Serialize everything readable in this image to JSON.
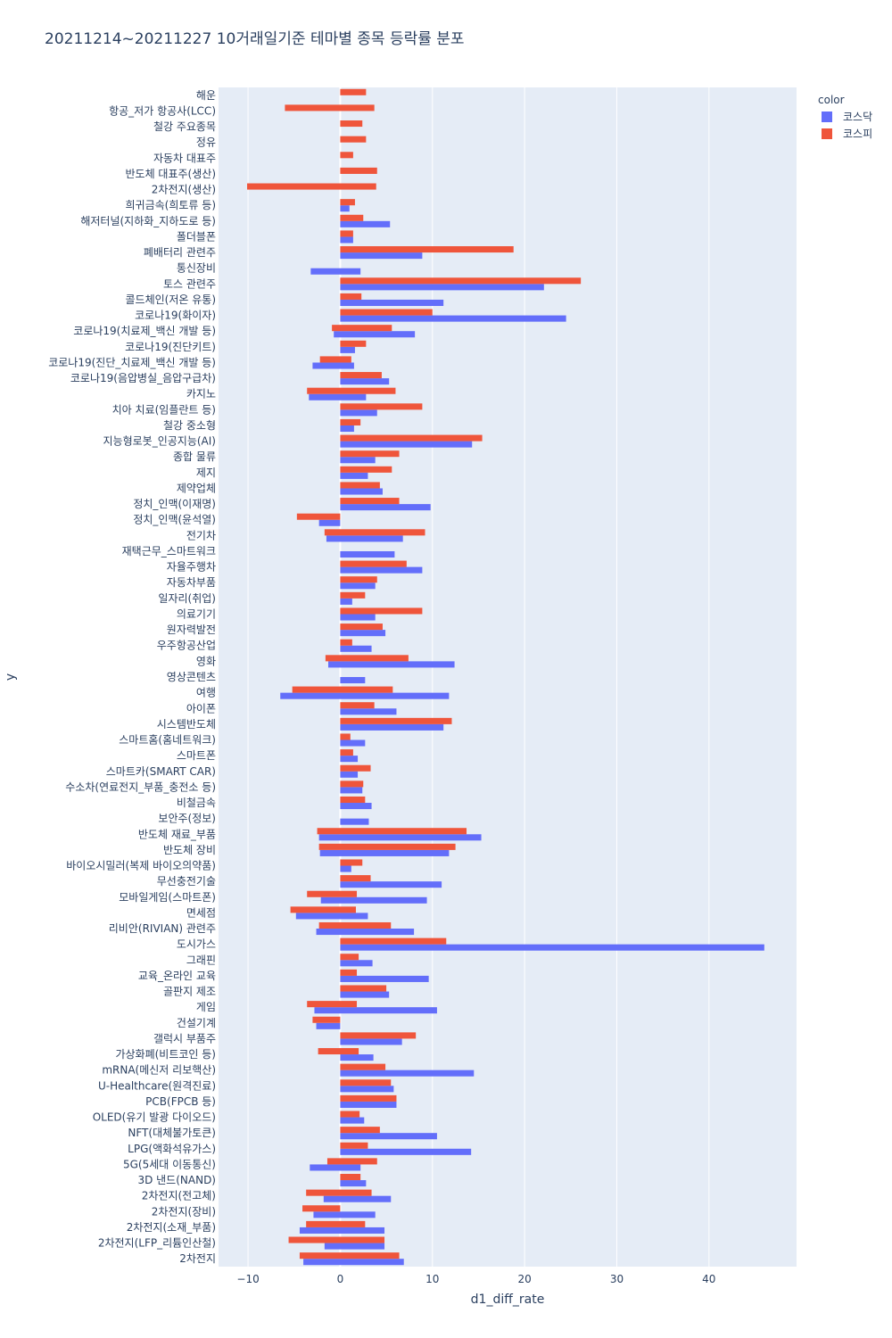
{
  "chart_data": {
    "type": "bar",
    "orientation": "horizontal",
    "barmode": "overlay-stacked-segments",
    "title": "20211214~20211227 10거래일기준 테마별 종목 등락률 분포",
    "xlabel": "d1_diff_rate",
    "ylabel": "y",
    "xlim": [
      -13.2,
      49.5
    ],
    "xticks": [
      -10,
      0,
      10,
      20,
      30,
      40
    ],
    "grid": true,
    "legend": {
      "title": "color",
      "position": "top-right"
    },
    "colors": {
      "코스닥": "#636efa",
      "코스피": "#ef553b"
    },
    "categories": [
      "해운",
      "항공_저가 항공사(LCC)",
      "철강 주요종목",
      "정유",
      "자동차 대표주",
      "반도체 대표주(생산)",
      "2차전지(생산)",
      "희귀금속(희토류 등)",
      "해저터널(지하화_지하도로 등)",
      "폴더블폰",
      "폐배터리 관련주",
      "통신장비",
      "토스 관련주",
      "콜드체인(저온 유통)",
      "코로나19(화이자)",
      "코로나19(치료제_백신 개발 등)",
      "코로나19(진단키트)",
      "코로나19(진단_치료제_백신 개발 등)",
      "코로나19(음압병실_음압구급차)",
      "카지노",
      "치아 치료(임플란트 등)",
      "철강 중소형",
      "지능형로봇_인공지능(AI)",
      "종합 물류",
      "제지",
      "제약업체",
      "정치_인맥(이재명)",
      "정치_인맥(윤석열)",
      "전기차",
      "재택근무_스마트워크",
      "자율주행차",
      "자동차부품",
      "일자리(취업)",
      "의료기기",
      "원자력발전",
      "우주항공산업",
      "영화",
      "영상콘텐츠",
      "여행",
      "아이폰",
      "시스템반도체",
      "스마트홈(홈네트워크)",
      "스마트폰",
      "스마트카(SMART CAR)",
      "수소차(연료전지_부품_충전소 등)",
      "비철금속",
      "보안주(정보)",
      "반도체 재료_부품",
      "반도체 장비",
      "바이오시밀러(복제 바이오의약품)",
      "무선충전기술",
      "모바일게임(스마트폰)",
      "면세점",
      "리비안(RIVIAN) 관련주",
      "도시가스",
      "그래핀",
      "교육_온라인 교육",
      "골판지 제조",
      "게임",
      "건설기계",
      "갤럭시 부품주",
      "가상화폐(비트코인 등)",
      "mRNA(메신저 리보핵산)",
      "U-Healthcare(원격진료)",
      "PCB(FPCB 등)",
      "OLED(유기 발광 다이오드)",
      "NFT(대체불가토큰)",
      "LPG(액화석유가스)",
      "5G(5세대 이동통신)",
      "3D 낸드(NAND)",
      "2차전지(전고체)",
      "2차전지(장비)",
      "2차전지(소재_부품)",
      "2차전지(LFP_리튬인산철)",
      "2차전지"
    ],
    "series": [
      {
        "name": "코스닥",
        "ranges": [
          null,
          null,
          null,
          null,
          null,
          null,
          null,
          [
            0,
            1.0
          ],
          [
            0,
            5.4
          ],
          [
            0,
            1.4
          ],
          [
            0,
            8.9
          ],
          [
            -3.2,
            2.2
          ],
          [
            0,
            22.1
          ],
          [
            0,
            11.2
          ],
          [
            0,
            24.5
          ],
          [
            -0.7,
            8.1
          ],
          [
            0,
            1.6
          ],
          [
            -3.0,
            1.5
          ],
          [
            0,
            5.3
          ],
          [
            -3.4,
            2.8
          ],
          [
            0,
            4.0
          ],
          [
            0,
            1.5
          ],
          [
            0,
            14.3
          ],
          [
            0,
            3.8
          ],
          [
            0,
            3.0
          ],
          [
            0,
            4.6
          ],
          [
            0,
            9.8
          ],
          [
            -2.3,
            0
          ],
          [
            -1.5,
            6.8
          ],
          [
            0,
            5.9
          ],
          [
            0,
            8.9
          ],
          [
            0,
            3.8
          ],
          [
            0,
            1.3
          ],
          [
            0,
            3.8
          ],
          [
            0,
            4.9
          ],
          [
            0,
            3.4
          ],
          [
            -1.3,
            12.4
          ],
          [
            0,
            2.7
          ],
          [
            -6.5,
            11.8
          ],
          [
            0,
            6.1
          ],
          [
            0,
            11.2
          ],
          [
            0,
            2.7
          ],
          [
            0,
            1.9
          ],
          [
            0,
            1.9
          ],
          [
            0,
            2.4
          ],
          [
            0,
            3.4
          ],
          [
            0,
            3.1
          ],
          [
            -2.3,
            15.3
          ],
          [
            -2.2,
            11.8
          ],
          [
            0,
            1.2
          ],
          [
            0,
            11.0
          ],
          [
            -2.1,
            9.4
          ],
          [
            -4.8,
            3.0
          ],
          [
            -2.6,
            8.0
          ],
          [
            0,
            46.0
          ],
          [
            0,
            3.5
          ],
          [
            0,
            9.6
          ],
          [
            0,
            5.3
          ],
          [
            -2.8,
            10.5
          ],
          [
            -2.6,
            0
          ],
          [
            0,
            6.7
          ],
          [
            0,
            3.6
          ],
          [
            0,
            14.5
          ],
          [
            0,
            5.8
          ],
          [
            0,
            6.1
          ],
          [
            0,
            2.6
          ],
          [
            0,
            10.5
          ],
          [
            0,
            14.2
          ],
          [
            -3.3,
            2.2
          ],
          [
            0,
            2.8
          ],
          [
            -1.8,
            5.5
          ],
          [
            -2.9,
            3.8
          ],
          [
            -4.4,
            4.8
          ],
          [
            -1.7,
            4.8
          ],
          [
            -4.0,
            6.9
          ]
        ]
      },
      {
        "name": "코스피",
        "ranges": [
          [
            0,
            2.8
          ],
          [
            -6.0,
            3.7
          ],
          [
            0,
            2.4
          ],
          [
            0,
            2.8
          ],
          [
            0,
            1.4
          ],
          [
            0,
            4.0
          ],
          [
            -10.1,
            3.9
          ],
          [
            0,
            1.6
          ],
          [
            0,
            2.5
          ],
          [
            0,
            1.4
          ],
          [
            0,
            18.8
          ],
          null,
          [
            0,
            26.1
          ],
          [
            0,
            2.3
          ],
          [
            0,
            10.0
          ],
          [
            -0.9,
            5.6
          ],
          [
            0,
            2.8
          ],
          [
            -2.2,
            1.2
          ],
          [
            0,
            4.5
          ],
          [
            -3.6,
            6.0
          ],
          [
            0,
            8.9
          ],
          [
            0,
            2.2
          ],
          [
            0,
            15.4
          ],
          [
            0,
            6.4
          ],
          [
            0,
            5.6
          ],
          [
            0,
            4.3
          ],
          [
            0,
            6.4
          ],
          [
            -4.7,
            0
          ],
          [
            -1.7,
            9.2
          ],
          null,
          [
            0,
            7.2
          ],
          [
            0,
            4.0
          ],
          [
            0,
            2.7
          ],
          [
            0,
            8.9
          ],
          [
            0,
            4.6
          ],
          [
            0,
            1.3
          ],
          [
            -1.6,
            7.4
          ],
          null,
          [
            -5.2,
            5.7
          ],
          [
            0,
            3.7
          ],
          [
            0,
            12.1
          ],
          [
            0,
            1.1
          ],
          [
            0,
            1.4
          ],
          [
            0,
            3.3
          ],
          [
            0,
            2.5
          ],
          [
            0,
            2.7
          ],
          null,
          [
            -2.5,
            13.7
          ],
          [
            -2.3,
            12.5
          ],
          [
            0,
            2.4
          ],
          [
            0,
            3.3
          ],
          [
            -3.6,
            1.8
          ],
          [
            -5.4,
            1.7
          ],
          [
            -2.3,
            5.5
          ],
          [
            0,
            11.5
          ],
          [
            0,
            2.0
          ],
          [
            0,
            1.8
          ],
          [
            0,
            5.0
          ],
          [
            -3.6,
            1.8
          ],
          [
            -3.0,
            0
          ],
          [
            0,
            8.2
          ],
          [
            -2.4,
            2.0
          ],
          [
            0,
            4.9
          ],
          [
            0,
            5.5
          ],
          [
            0,
            6.1
          ],
          [
            0,
            2.1
          ],
          [
            0,
            4.3
          ],
          [
            0,
            3.0
          ],
          [
            -1.4,
            4.0
          ],
          [
            0,
            2.2
          ],
          [
            -3.7,
            3.4
          ],
          [
            -4.1,
            0
          ],
          [
            -3.7,
            2.7
          ],
          [
            -5.6,
            4.8
          ],
          [
            -4.4,
            6.4
          ]
        ]
      }
    ]
  }
}
